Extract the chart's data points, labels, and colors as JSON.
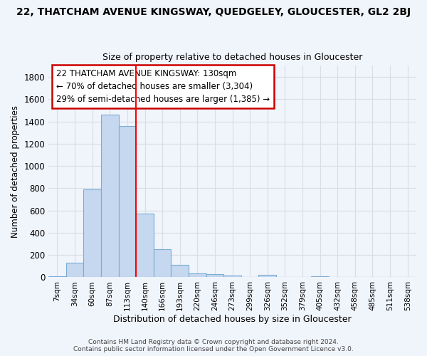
{
  "title_line1": "22, THATCHAM AVENUE KINGSWAY, QUEDGELEY, GLOUCESTER, GL2 2BJ",
  "title_line2": "Size of property relative to detached houses in Gloucester",
  "xlabel": "Distribution of detached houses by size in Gloucester",
  "ylabel": "Number of detached properties",
  "bar_labels": [
    "7sqm",
    "34sqm",
    "60sqm",
    "87sqm",
    "113sqm",
    "140sqm",
    "166sqm",
    "193sqm",
    "220sqm",
    "246sqm",
    "273sqm",
    "299sqm",
    "326sqm",
    "352sqm",
    "379sqm",
    "405sqm",
    "432sqm",
    "458sqm",
    "485sqm",
    "511sqm",
    "538sqm"
  ],
  "bar_values": [
    10,
    130,
    790,
    1460,
    1360,
    570,
    250,
    110,
    35,
    28,
    15,
    0,
    20,
    0,
    0,
    10,
    0,
    0,
    0,
    0,
    0
  ],
  "bar_color": "#c5d8f0",
  "bar_edge_color": "#7aadd4",
  "annotation_lines": [
    "22 THATCHAM AVENUE KINGSWAY: 130sqm",
    "← 70% of detached houses are smaller (3,304)",
    "29% of semi-detached houses are larger (1,385) →"
  ],
  "annotation_box_color": "#ffffff",
  "annotation_box_edge": "#cc0000",
  "footer_line1": "Contains HM Land Registry data © Crown copyright and database right 2024.",
  "footer_line2": "Contains public sector information licensed under the Open Government Licence v3.0.",
  "ylim": [
    0,
    1900
  ],
  "yticks": [
    0,
    200,
    400,
    600,
    800,
    1000,
    1200,
    1400,
    1600,
    1800
  ],
  "background_color": "#f0f4fb",
  "grid_color": "#d8dde8",
  "title1_fontsize": 10,
  "title2_fontsize": 9,
  "red_line_bin": 4.5
}
